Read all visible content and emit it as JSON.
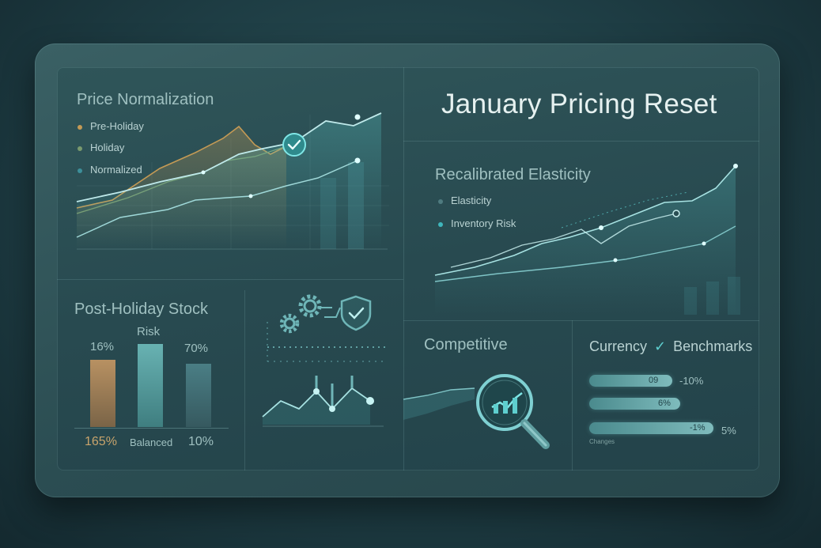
{
  "colors": {
    "accent": "#5ecfcf",
    "pre_holiday": "#c49a55",
    "holiday": "#7a9a6e",
    "normalized": "#3d8f9a",
    "bar_gold": "#b89162",
    "bar_teal": "#68b2b2",
    "bar_slate": "#3f6d74"
  },
  "header": {
    "title": "January Pricing Reset"
  },
  "price_normalization": {
    "title": "Price Normalization",
    "legend": [
      "Pre-Holiday",
      "Holiday",
      "Normalized"
    ],
    "status_icon": "check-circle-icon"
  },
  "elasticity": {
    "title": "Recalibrated Elasticity",
    "legend": [
      "Elasticity",
      "Inventory Risk"
    ]
  },
  "stock": {
    "title": "Post-Holiday Stock",
    "bars": [
      {
        "top": "16%",
        "bottom": "165%",
        "level": 0.6
      },
      {
        "top": "Risk",
        "bottom": "Balanced",
        "level": 0.75
      },
      {
        "top": "70%",
        "bottom": "10%",
        "level": 0.58
      }
    ]
  },
  "process": {
    "icons": [
      "gear-icon",
      "shield-check-icon"
    ]
  },
  "competitive": {
    "title": "Competitive",
    "icon": "magnifier-icon"
  },
  "benchmarks": {
    "title_left": "Currency",
    "title_right": "Benchmarks",
    "bars": [
      {
        "inner": "09",
        "outer": "-10%",
        "level": 0.6
      },
      {
        "inner": "6%",
        "outer": "",
        "level": 0.6
      },
      {
        "inner": "-1%",
        "outer": "5%",
        "level": 0.82
      }
    ],
    "caption": "Changes"
  }
}
